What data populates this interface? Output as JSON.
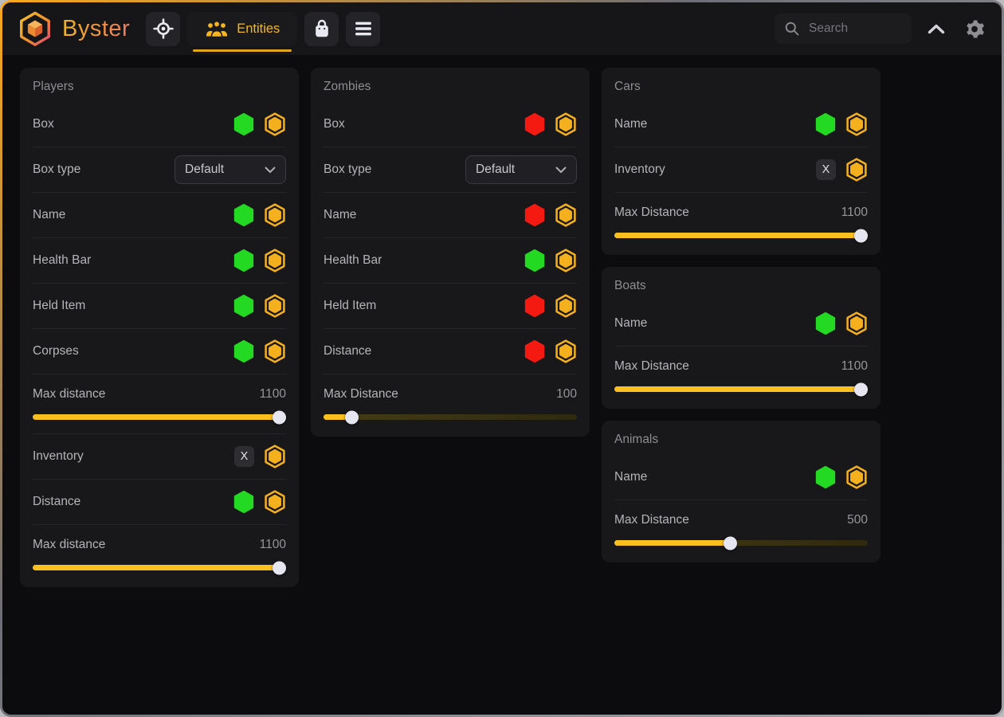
{
  "app": {
    "name": "Byster"
  },
  "header": {
    "brand": "Byster",
    "tabs": [
      {
        "label": "",
        "icon": "crosshair-icon",
        "active": false
      },
      {
        "label": "Entities",
        "icon": "people-icon",
        "active": true
      },
      {
        "label": "",
        "icon": "bag-icon",
        "active": false
      },
      {
        "label": "",
        "icon": "menu-icon",
        "active": false
      }
    ],
    "search": {
      "placeholder": "Search",
      "value": ""
    },
    "icons": [
      "chevron-up-icon",
      "gear-icon"
    ]
  },
  "colors": {
    "accent": "#f5b01e",
    "toggle_on": "#23d922",
    "toggle_off": "#f41a12",
    "slider_fill": "#fcc01e",
    "slider_thumb": "#e6e6f0",
    "tab_underline": "#dfa718"
  },
  "panels": [
    {
      "title": "Players",
      "column": 0,
      "rows": [
        {
          "type": "toggle",
          "label": "Box",
          "state": "on"
        },
        {
          "type": "dropdown",
          "label": "Box type",
          "value": "Default"
        },
        {
          "type": "toggle",
          "label": "Name",
          "state": "on"
        },
        {
          "type": "toggle",
          "label": "Health Bar",
          "state": "on"
        },
        {
          "type": "toggle",
          "label": "Held Item",
          "state": "on"
        },
        {
          "type": "toggle",
          "label": "Corpses",
          "state": "on"
        },
        {
          "type": "slider",
          "label": "Max distance",
          "value": 1100,
          "max": 1100
        },
        {
          "type": "keybind",
          "label": "Inventory",
          "key": "X"
        },
        {
          "type": "toggle",
          "label": "Distance",
          "state": "on"
        },
        {
          "type": "slider",
          "label": "Max distance",
          "value": 1100,
          "max": 1100
        }
      ]
    },
    {
      "title": "Zombies",
      "column": 1,
      "rows": [
        {
          "type": "toggle",
          "label": "Box",
          "state": "off"
        },
        {
          "type": "dropdown",
          "label": "Box type",
          "value": "Default"
        },
        {
          "type": "toggle",
          "label": "Name",
          "state": "off"
        },
        {
          "type": "toggle",
          "label": "Health Bar",
          "state": "on"
        },
        {
          "type": "toggle",
          "label": "Held Item",
          "state": "off"
        },
        {
          "type": "toggle",
          "label": "Distance",
          "state": "off"
        },
        {
          "type": "slider",
          "label": "Max Distance",
          "value": 100,
          "max": 1100
        }
      ]
    },
    {
      "title": "Cars",
      "column": 2,
      "rows": [
        {
          "type": "toggle",
          "label": "Name",
          "state": "on"
        },
        {
          "type": "keybind",
          "label": "Inventory",
          "key": "X"
        },
        {
          "type": "slider",
          "label": "Max Distance",
          "value": 1100,
          "max": 1100
        }
      ]
    },
    {
      "title": "Boats",
      "column": 2,
      "rows": [
        {
          "type": "toggle",
          "label": "Name",
          "state": "on"
        },
        {
          "type": "slider",
          "label": "Max Distance",
          "value": 1100,
          "max": 1100
        }
      ]
    },
    {
      "title": "Animals",
      "column": 2,
      "rows": [
        {
          "type": "toggle",
          "label": "Name",
          "state": "on"
        },
        {
          "type": "slider",
          "label": "Max Distance",
          "value": 500,
          "max": 1100
        }
      ]
    }
  ]
}
